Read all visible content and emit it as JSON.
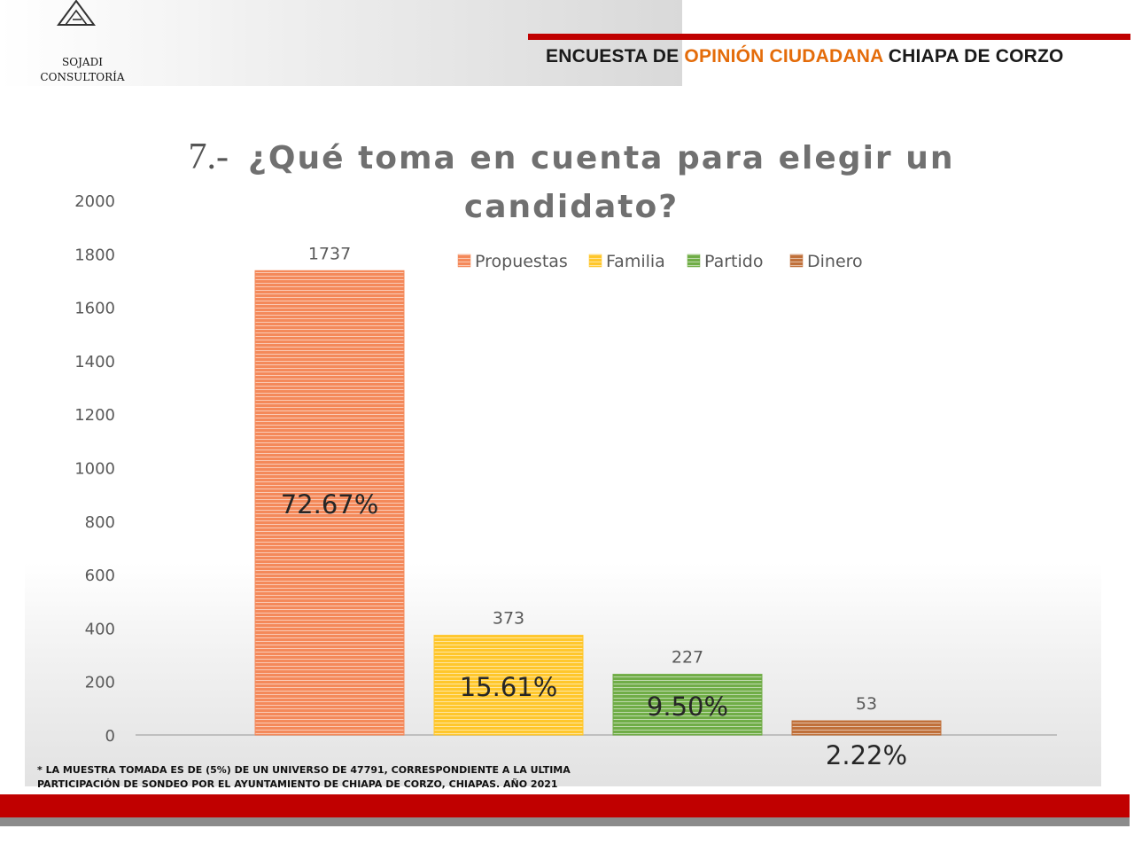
{
  "brand": {
    "line1": "SOJADI",
    "line2": "CONSULTORÍA"
  },
  "header": {
    "part1": "ENCUESTA DE ",
    "part2": "OPINIÓN CIUDADANA",
    "part3": " CHIAPA DE CORZO"
  },
  "chart_title": {
    "number": "7.-",
    "text": "¿Qué toma en cuenta para elegir un candidato?"
  },
  "footnote": {
    "line1": "* LA MUESTRA TOMADA ES DE (5%) DE UN UNIVERSO DE 47791, CORRESPONDIENTE A LA ULTIMA",
    "line2": "PARTICIPACIÓN DE SONDEO  POR EL AYUNTAMIENTO DE CHIAPA DE CORZO, CHIAPAS. AÑO 2021"
  },
  "colors": {
    "header_accent": "#e46c0a",
    "brand_red": "#c00000",
    "propuestas": "#f4895a",
    "familia": "#ffc72c",
    "partido": "#70ad47",
    "dinero": "#c0703a"
  },
  "chart_data": {
    "type": "bar",
    "title": "¿Qué toma en cuenta para elegir un candidato?",
    "xlabel": "",
    "ylabel": "",
    "ylim": [
      0,
      2000
    ],
    "yticks": [
      "0",
      "200",
      "400",
      "600",
      "800",
      "1000",
      "1200",
      "1400",
      "1600",
      "1800",
      "2000"
    ],
    "legend_position": "top-right",
    "categories": [
      "Propuestas",
      "Familia",
      "Partido",
      "Dinero"
    ],
    "values": [
      1737,
      373,
      227,
      53
    ],
    "value_labels": [
      "1737",
      "373",
      "227",
      "53"
    ],
    "percent_labels": [
      "72.67%",
      "15.61%",
      "9.50%",
      "2.22%"
    ],
    "colors": [
      "#f4895a",
      "#ffc72c",
      "#70ad47",
      "#c0703a"
    ]
  }
}
